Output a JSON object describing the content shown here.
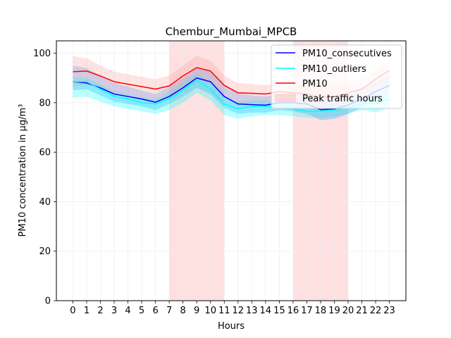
{
  "chart_data": {
    "type": "line",
    "title": "Chembur_Mumbai_MPCB",
    "xlabel": "Hours",
    "ylabel": "PM10 concentration in µg/m³",
    "x": [
      0,
      1,
      2,
      3,
      4,
      5,
      6,
      7,
      8,
      9,
      10,
      11,
      12,
      13,
      14,
      15,
      16,
      17,
      18,
      19,
      20,
      21,
      22,
      23
    ],
    "xlim": [
      -1.2,
      24.2
    ],
    "ylim": [
      0,
      105
    ],
    "yticks": [
      0,
      20,
      40,
      60,
      80,
      100
    ],
    "grid": true,
    "legend_position": "top-right",
    "peak_traffic_hours": [
      [
        7,
        11
      ],
      [
        16,
        20
      ]
    ],
    "series": [
      {
        "name": "PM10_consecutives",
        "color": "#0000ff",
        "band_color": "#1e90ff",
        "values": [
          88.5,
          88.0,
          86.0,
          83.5,
          82.5,
          81.5,
          80.2,
          82.5,
          86.0,
          90.0,
          88.5,
          82.5,
          79.5,
          79.2,
          79.0,
          80.0,
          80.0,
          79.5,
          77.2,
          77.5,
          79.0,
          81.5,
          84.5,
          87.0
        ],
        "lower": [
          85.0,
          85.5,
          83.0,
          80.5,
          79.5,
          78.5,
          77.0,
          79.5,
          82.5,
          86.0,
          83.5,
          78.0,
          75.5,
          76.0,
          76.0,
          77.0,
          76.5,
          75.5,
          73.0,
          73.5,
          75.5,
          78.0,
          80.5,
          83.0
        ],
        "upper": [
          95.0,
          94.0,
          91.0,
          88.0,
          86.5,
          85.0,
          83.5,
          86.5,
          90.0,
          94.0,
          93.0,
          87.5,
          84.0,
          83.0,
          82.5,
          83.5,
          83.5,
          83.5,
          81.5,
          82.0,
          83.0,
          85.5,
          88.5,
          91.0
        ]
      },
      {
        "name": "PM10_outliers",
        "color": "#00ffff",
        "band_color": "#00ffff",
        "values": [
          88.5,
          88.5,
          85.5,
          82.5,
          81.5,
          80.0,
          79.5,
          81.5,
          85.0,
          89.0,
          85.5,
          79.5,
          77.5,
          78.5,
          78.5,
          78.0,
          77.5,
          76.5,
          76.5,
          77.0,
          78.0,
          79.5,
          80.0,
          81.5
        ],
        "lower": [
          82.0,
          82.5,
          80.5,
          78.5,
          77.5,
          76.5,
          75.5,
          77.0,
          80.0,
          84.0,
          81.0,
          75.0,
          73.5,
          74.5,
          75.0,
          75.0,
          74.5,
          74.0,
          74.0,
          74.5,
          75.5,
          77.0,
          76.0,
          78.0
        ],
        "upper": [
          90.5,
          90.0,
          87.5,
          84.5,
          83.5,
          82.0,
          81.5,
          84.5,
          88.0,
          92.0,
          88.5,
          82.0,
          80.5,
          81.0,
          81.0,
          80.5,
          80.0,
          79.0,
          79.0,
          79.5,
          80.5,
          82.0,
          83.0,
          84.0
        ]
      },
      {
        "name": "PM10",
        "color": "#ff0000",
        "band_color": "#ff9a9a",
        "values": [
          92.5,
          92.8,
          90.8,
          88.5,
          87.5,
          86.5,
          85.5,
          86.8,
          90.8,
          94.2,
          92.8,
          87.0,
          84.0,
          83.8,
          83.5,
          84.5,
          84.0,
          83.5,
          82.0,
          82.5,
          84.0,
          85.5,
          89.5,
          93.0
        ],
        "lower": [
          86.5,
          87.0,
          85.5,
          83.5,
          82.5,
          81.5,
          80.5,
          82.0,
          86.0,
          89.5,
          88.0,
          82.0,
          79.5,
          79.5,
          79.5,
          80.5,
          80.0,
          79.5,
          78.0,
          78.5,
          80.0,
          82.0,
          85.0,
          88.5
        ],
        "upper": [
          98.8,
          98.0,
          95.0,
          92.5,
          91.5,
          90.5,
          89.5,
          91.0,
          95.0,
          99.0,
          97.0,
          91.0,
          88.0,
          87.5,
          87.0,
          88.0,
          88.0,
          87.5,
          86.5,
          86.5,
          88.0,
          89.5,
          93.5,
          97.0
        ]
      }
    ],
    "legend_entries": [
      "PM10_consecutives",
      "PM10_outliers",
      "PM10",
      "Peak traffic hours"
    ]
  }
}
